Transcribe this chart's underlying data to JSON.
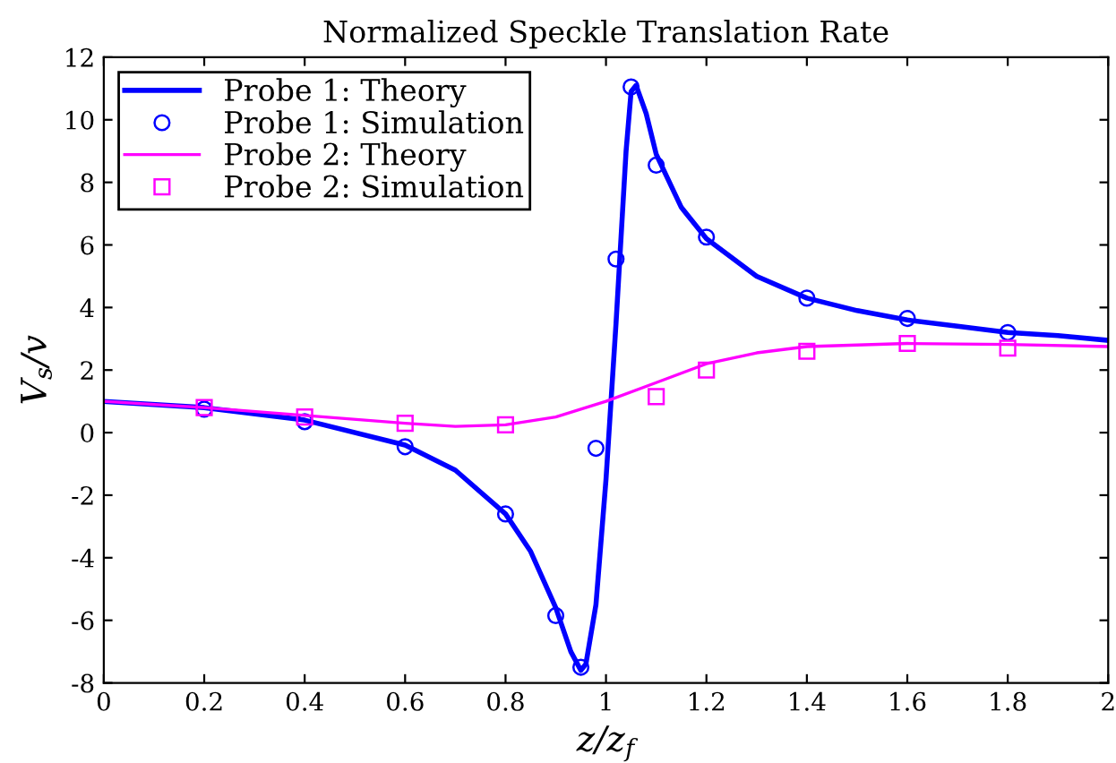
{
  "chart_data": {
    "type": "line",
    "title": "Normalized Speckle Translation Rate",
    "xlabel": "z/z$_{f}$",
    "ylabel": "V$_{s}$/v",
    "xlim": [
      0,
      2
    ],
    "ylim": [
      -8,
      12
    ],
    "xticks": [
      0,
      0.2,
      0.4,
      0.6,
      0.8,
      1,
      1.2,
      1.4,
      1.6,
      1.8,
      2
    ],
    "yticks": [
      -8,
      -6,
      -4,
      -2,
      0,
      2,
      4,
      6,
      8,
      10,
      12
    ],
    "grid": false,
    "legend": "top left",
    "series": [
      {
        "name": "Probe 1: Theory",
        "color": "#0000ff",
        "line_style": "solid",
        "marker": "none",
        "x": [
          0,
          0.2,
          0.4,
          0.6,
          0.7,
          0.8,
          0.85,
          0.9,
          0.93,
          0.95,
          0.96,
          0.98,
          1.0,
          1.02,
          1.04,
          1.05,
          1.06,
          1.08,
          1.1,
          1.15,
          1.2,
          1.3,
          1.4,
          1.5,
          1.6,
          1.7,
          1.8,
          1.9,
          2.0
        ],
        "values": [
          1.0,
          0.8,
          0.4,
          -0.4,
          -1.2,
          -2.6,
          -3.8,
          -5.6,
          -7.0,
          -7.6,
          -7.4,
          -5.5,
          -1.5,
          3.5,
          9.0,
          10.9,
          11.1,
          10.2,
          8.9,
          7.2,
          6.2,
          5.0,
          4.3,
          3.9,
          3.6,
          3.4,
          3.2,
          3.1,
          2.95
        ]
      },
      {
        "name": "Probe 1: Simulation",
        "type": "scatter",
        "color": "#0000ff",
        "marker": "circle",
        "x": [
          0.2,
          0.4,
          0.6,
          0.8,
          0.9,
          0.95,
          0.98,
          1.02,
          1.05,
          1.1,
          1.2,
          1.4,
          1.6,
          1.8
        ],
        "values": [
          0.75,
          0.35,
          -0.45,
          -2.6,
          -5.85,
          -7.5,
          -0.5,
          5.55,
          11.05,
          8.55,
          6.25,
          4.3,
          3.65,
          3.2
        ]
      },
      {
        "name": "Probe 2: Theory",
        "color": "#ff00ff",
        "line_style": "solid",
        "marker": "none",
        "x": [
          0,
          0.2,
          0.4,
          0.6,
          0.7,
          0.8,
          0.9,
          1.0,
          1.1,
          1.2,
          1.3,
          1.4,
          1.6,
          1.8,
          2.0
        ],
        "values": [
          1.0,
          0.8,
          0.55,
          0.3,
          0.2,
          0.25,
          0.5,
          1.0,
          1.6,
          2.2,
          2.55,
          2.75,
          2.85,
          2.82,
          2.75
        ]
      },
      {
        "name": "Probe 2: Simulation",
        "type": "scatter",
        "color": "#ff00ff",
        "marker": "square",
        "x": [
          0.2,
          0.4,
          0.6,
          0.8,
          1.1,
          1.2,
          1.4,
          1.6,
          1.8
        ],
        "values": [
          0.8,
          0.5,
          0.3,
          0.25,
          1.15,
          2.0,
          2.6,
          2.85,
          2.7
        ]
      }
    ]
  }
}
